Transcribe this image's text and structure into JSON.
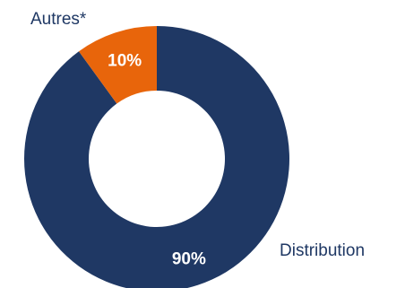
{
  "chart_data": {
    "type": "pie",
    "donut": true,
    "categories": [
      "Distribution",
      "Autres*"
    ],
    "values": [
      90,
      10
    ],
    "value_labels": [
      "90%",
      "10%"
    ],
    "colors": [
      "#1f3864",
      "#e8650b"
    ],
    "label_color": "#1f3864",
    "legend": "none"
  }
}
